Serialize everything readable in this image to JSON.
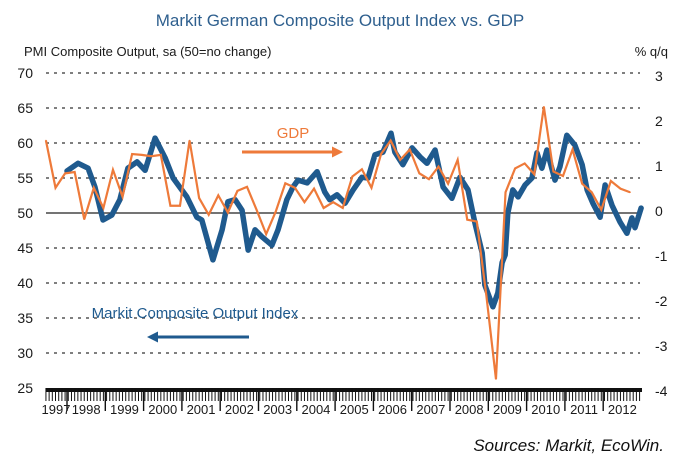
{
  "chart_data": {
    "type": "line",
    "title": "Markit German Composite Output Index vs. GDP",
    "ylabel_left": "PMI Composite Output, sa (50=no change)",
    "ylabel_right": "% q/q",
    "source": "Sources: Markit, EcoWin.",
    "x_range": [
      1997.45,
      2013.0
    ],
    "x_tick_labels": [
      "1997",
      "1998",
      "1999",
      "2000",
      "2001",
      "2002",
      "2003",
      "2004",
      "2005",
      "2006",
      "2007",
      "2008",
      "2009",
      "2010",
      "2011",
      "2012"
    ],
    "left_axis": {
      "ylim": [
        25,
        70
      ],
      "ticks": [
        70,
        65,
        60,
        55,
        50,
        45,
        40,
        35,
        30,
        25
      ]
    },
    "right_axis": {
      "ylim": [
        -4,
        3
      ],
      "ticks": [
        3,
        2,
        1,
        0,
        -1,
        -2,
        -3,
        -4
      ]
    },
    "grid": "dotted horizontal at left-axis ticks; solid line at 50 / 0",
    "annotations": [
      {
        "text": "GDP",
        "arrow": "right",
        "series": "GDP"
      },
      {
        "text": "Markit Composite Output Index",
        "arrow": "left",
        "series": "PMI"
      }
    ],
    "series": [
      {
        "name": "Markit Composite Output Index",
        "axis": "left",
        "color": "#1f5a8e",
        "frequency": "monthly",
        "points": [
          [
            1998.0,
            56.0
          ],
          [
            1998.29,
            57.1
          ],
          [
            1998.55,
            56.4
          ],
          [
            1998.73,
            53.7
          ],
          [
            1998.94,
            49.0
          ],
          [
            1999.17,
            49.7
          ],
          [
            1999.38,
            51.9
          ],
          [
            1999.59,
            56.4
          ],
          [
            1999.83,
            57.3
          ],
          [
            2000.04,
            56.1
          ],
          [
            2000.3,
            60.7
          ],
          [
            2000.56,
            57.9
          ],
          [
            2000.77,
            55.0
          ],
          [
            2001.13,
            52.3
          ],
          [
            2001.39,
            49.4
          ],
          [
            2001.52,
            49.0
          ],
          [
            2001.81,
            43.3
          ],
          [
            2002.05,
            47.6
          ],
          [
            2002.2,
            51.6
          ],
          [
            2002.39,
            51.9
          ],
          [
            2002.57,
            50.4
          ],
          [
            2002.73,
            44.7
          ],
          [
            2002.91,
            47.6
          ],
          [
            2003.09,
            46.6
          ],
          [
            2003.35,
            45.4
          ],
          [
            2003.51,
            47.6
          ],
          [
            2003.74,
            51.9
          ],
          [
            2003.9,
            53.7
          ],
          [
            2004.03,
            54.7
          ],
          [
            2004.27,
            54.3
          ],
          [
            2004.53,
            55.9
          ],
          [
            2004.73,
            53.0
          ],
          [
            2004.86,
            51.9
          ],
          [
            2005.05,
            52.6
          ],
          [
            2005.26,
            51.4
          ],
          [
            2005.47,
            53.3
          ],
          [
            2005.7,
            55.1
          ],
          [
            2005.86,
            55.0
          ],
          [
            2006.04,
            58.3
          ],
          [
            2006.25,
            58.7
          ],
          [
            2006.46,
            61.4
          ],
          [
            2006.56,
            58.7
          ],
          [
            2006.77,
            56.9
          ],
          [
            2007.01,
            59.3
          ],
          [
            2007.22,
            58.0
          ],
          [
            2007.4,
            57.1
          ],
          [
            2007.61,
            59.0
          ],
          [
            2007.82,
            53.7
          ],
          [
            2008.05,
            52.1
          ],
          [
            2008.26,
            55.1
          ],
          [
            2008.47,
            53.3
          ],
          [
            2008.65,
            48.6
          ],
          [
            2008.84,
            44.3
          ],
          [
            2008.91,
            39.7
          ],
          [
            2009.12,
            36.6
          ],
          [
            2009.25,
            38.6
          ],
          [
            2009.36,
            42.9
          ],
          [
            2009.44,
            44.0
          ],
          [
            2009.51,
            50.0
          ],
          [
            2009.64,
            53.3
          ],
          [
            2009.78,
            52.3
          ],
          [
            2009.96,
            54.0
          ],
          [
            2010.14,
            55.0
          ],
          [
            2010.27,
            58.6
          ],
          [
            2010.4,
            56.4
          ],
          [
            2010.53,
            59.0
          ],
          [
            2010.74,
            54.7
          ],
          [
            2010.87,
            56.6
          ],
          [
            2011.05,
            61.1
          ],
          [
            2011.26,
            59.7
          ],
          [
            2011.45,
            56.9
          ],
          [
            2011.58,
            53.3
          ],
          [
            2011.73,
            51.4
          ],
          [
            2011.92,
            49.4
          ],
          [
            2012.05,
            54.0
          ],
          [
            2012.23,
            51.1
          ],
          [
            2012.44,
            48.7
          ],
          [
            2012.62,
            47.1
          ],
          [
            2012.75,
            49.3
          ],
          [
            2012.83,
            47.9
          ],
          [
            2012.99,
            50.7
          ]
        ]
      },
      {
        "name": "GDP",
        "axis": "right",
        "color": "#ee7a3a",
        "frequency": "quarterly",
        "start": 1997.45,
        "step": 0.25,
        "values": [
          1.5,
          0.45,
          0.77,
          0.8,
          -0.25,
          0.45,
          0.0,
          0.85,
          0.25,
          1.2,
          1.18,
          1.15,
          1.18,
          0.05,
          0.05,
          1.5,
          0.22,
          -0.15,
          0.28,
          -0.1,
          0.38,
          0.47,
          -0.04,
          -0.58,
          -0.08,
          0.55,
          0.45,
          0.13,
          0.43,
          0.0,
          0.13,
          0.0,
          0.7,
          0.86,
          0.45,
          1.2,
          1.5,
          1.07,
          1.3,
          0.77,
          0.64,
          0.92,
          0.54,
          1.07,
          -0.26,
          -0.3,
          -1.95,
          -3.8,
          0.35,
          0.88,
          0.99,
          0.75,
          2.25,
          0.81,
          0.71,
          1.3,
          0.54,
          0.35,
          -0.04,
          0.6,
          0.43,
          0.35
        ]
      }
    ]
  }
}
